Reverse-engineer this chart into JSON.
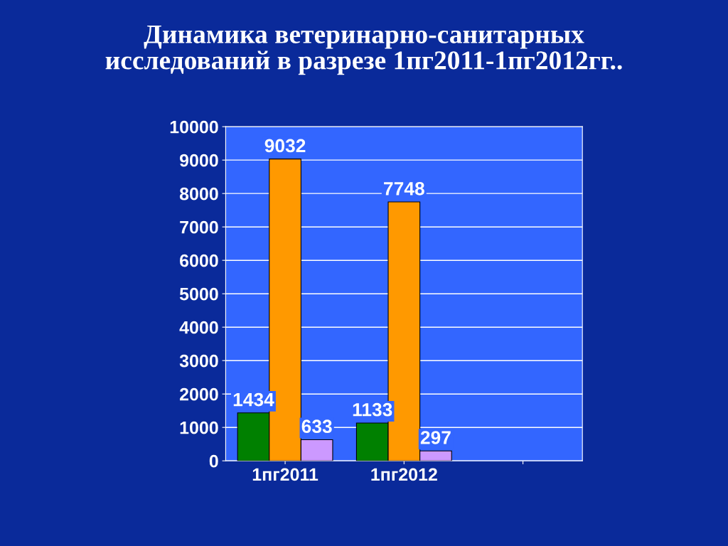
{
  "chart_data": {
    "type": "bar",
    "title": "Динамика ветеринарно-санитарных\nисследований в разрезе 1пг2011-1пг2012гг..",
    "categories": [
      "1пг2011",
      "1пг2012",
      null
    ],
    "series": [
      {
        "color": "#008000",
        "values": [
          1434,
          1133,
          null
        ]
      },
      {
        "color": "#ff9900",
        "values": [
          9032,
          7748,
          null
        ]
      },
      {
        "color": "#cc99ff",
        "values": [
          633,
          297,
          null
        ]
      }
    ],
    "ylim": [
      0,
      10000
    ],
    "yticks": [
      0,
      1000,
      2000,
      3000,
      4000,
      5000,
      6000,
      7000,
      8000,
      9000,
      10000
    ],
    "grid": "y",
    "data_labels": true
  }
}
